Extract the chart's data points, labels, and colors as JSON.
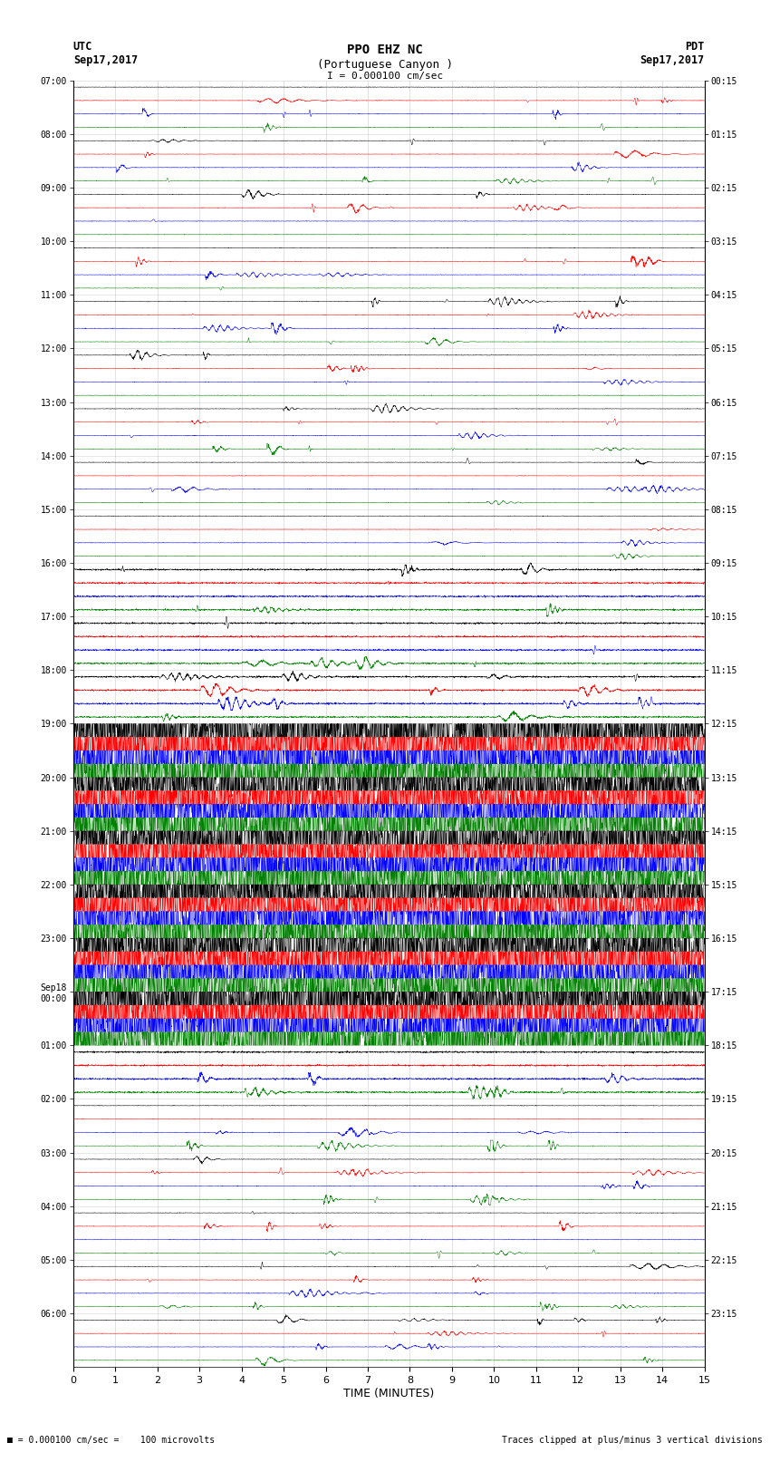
{
  "title_line1": "PPO EHZ NC",
  "title_line2": "(Portuguese Canyon )",
  "title_line3": "I = 0.000100 cm/sec",
  "label_left_top": "UTC",
  "label_left_date": "Sep17,2017",
  "label_right_top": "PDT",
  "label_right_date": "Sep17,2017",
  "xlabel": "TIME (MINUTES)",
  "footer_left": "= 0.000100 cm/sec =    100 microvolts",
  "footer_right": "Traces clipped at plus/minus 3 vertical divisions",
  "utc_times": [
    "07:00",
    "08:00",
    "09:00",
    "10:00",
    "11:00",
    "12:00",
    "13:00",
    "14:00",
    "15:00",
    "16:00",
    "17:00",
    "18:00",
    "19:00",
    "20:00",
    "21:00",
    "22:00",
    "23:00",
    "Sep18\n00:00",
    "01:00",
    "02:00",
    "03:00",
    "04:00",
    "05:00",
    "06:00"
  ],
  "pdt_times": [
    "00:15",
    "01:15",
    "02:15",
    "03:15",
    "04:15",
    "05:15",
    "06:15",
    "07:15",
    "08:15",
    "09:15",
    "10:15",
    "11:15",
    "12:15",
    "13:15",
    "14:15",
    "15:15",
    "16:15",
    "17:15",
    "18:15",
    "19:15",
    "20:15",
    "21:15",
    "22:15",
    "23:15"
  ],
  "n_rows": 24,
  "n_channels": 4,
  "colors": [
    "black",
    "red",
    "blue",
    "green"
  ],
  "minutes": 15,
  "bg_color": "white",
  "saturated_rows": [
    12,
    13,
    14,
    15,
    16,
    17
  ],
  "sep18_row": 17,
  "medium_rows": [
    9,
    10,
    11,
    18
  ],
  "figwidth": 8.5,
  "figheight": 16.13,
  "pts_per_minute": 200
}
